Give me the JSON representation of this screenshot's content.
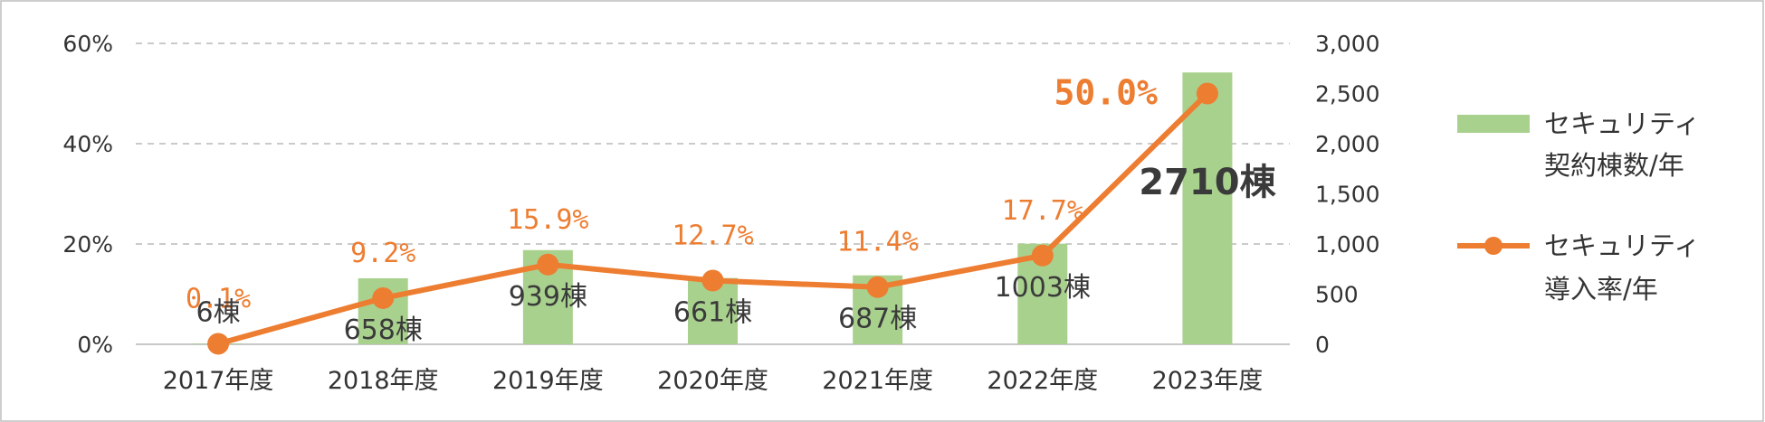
{
  "chart_data": {
    "type": "bar+line",
    "categories": [
      "2017年度",
      "2018年度",
      "2019年度",
      "2020年度",
      "2021年度",
      "2022年度",
      "2023年度"
    ],
    "series": [
      {
        "name": "セキュリティ契約棟数/年",
        "legend_lines": [
          "セキュリティ",
          "契約棟数/年"
        ],
        "type": "bar",
        "axis": "right",
        "values": [
          6,
          658,
          939,
          661,
          687,
          1003,
          2710
        ],
        "labels": [
          "6棟",
          "658棟",
          "939棟",
          "661棟",
          "687棟",
          "1003棟",
          "2710棟"
        ],
        "color": "#a9d18e"
      },
      {
        "name": "セキュリティ導入率/年",
        "legend_lines": [
          "セキュリティ",
          "導入率/年"
        ],
        "type": "line",
        "axis": "left",
        "values": [
          0.1,
          9.2,
          15.9,
          12.7,
          11.4,
          17.7,
          50.0
        ],
        "labels": [
          "0.1%",
          "9.2%",
          "15.9%",
          "12.7%",
          "11.4%",
          "17.7%",
          "50.0%"
        ],
        "color": "#ed7d31"
      }
    ],
    "y_left": {
      "min": 0,
      "max": 60,
      "step": 20,
      "ticks": [
        "0%",
        "20%",
        "40%",
        "60%"
      ]
    },
    "y_right": {
      "min": 0,
      "max": 3000,
      "step": 500,
      "ticks": [
        "0",
        "500",
        "1,000",
        "1,500",
        "2,000",
        "2,500",
        "3,000"
      ]
    },
    "gridlines": true,
    "legend_position": "right"
  }
}
